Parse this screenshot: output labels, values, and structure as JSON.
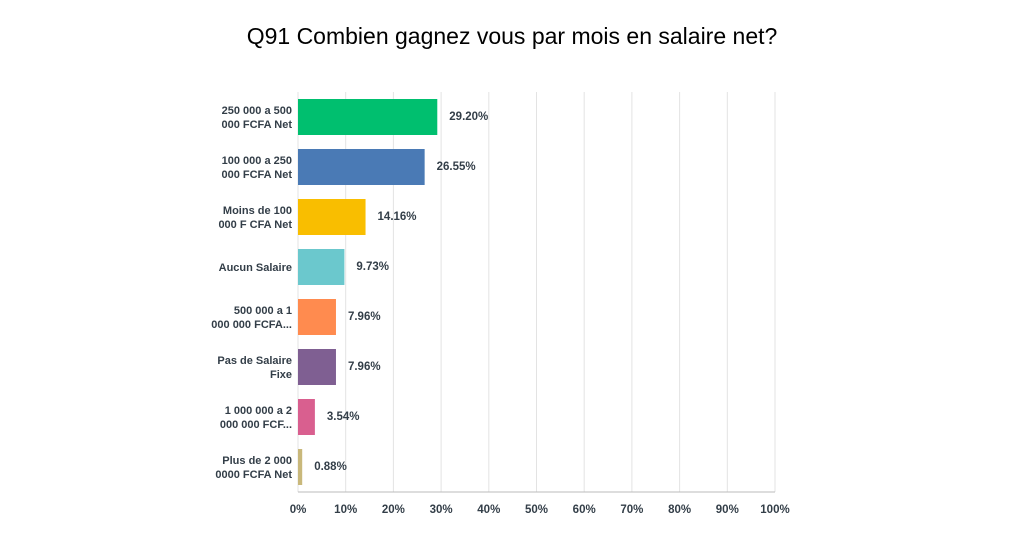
{
  "chart_data": {
    "type": "bar",
    "orientation": "horizontal",
    "title": "Q91 Combien gagnez vous par mois en salaire net?",
    "categories": [
      "250 000 a 500\n000 FCFA Net",
      "100 000 a 250\n000 FCFA Net",
      "Moins de 100\n000 F CFA Net",
      "Aucun Salaire",
      "500 000 a 1\n000 000 FCFA...",
      "Pas de Salaire\nFixe",
      "1 000 000 a 2\n000 000 FCF...",
      "Plus de 2 000\n0000 FCFA Net"
    ],
    "values": [
      29.2,
      26.55,
      14.16,
      9.73,
      7.96,
      7.96,
      3.54,
      0.88
    ],
    "value_labels": [
      "29.20%",
      "26.55%",
      "14.16%",
      "9.73%",
      "7.96%",
      "7.96%",
      "3.54%",
      "0.88%"
    ],
    "colors": [
      "#00bf6f",
      "#4a7ab5",
      "#f9be00",
      "#6bc8cd",
      "#ff8b4f",
      "#7f5f92",
      "#d95f8f",
      "#c9b87b"
    ],
    "xlim": [
      0,
      100
    ],
    "xticks": [
      {
        "value": 0,
        "label": "0%"
      },
      {
        "value": 10,
        "label": "10%"
      },
      {
        "value": 20,
        "label": "20%"
      },
      {
        "value": 30,
        "label": "30%"
      },
      {
        "value": 40,
        "label": "40%"
      },
      {
        "value": 50,
        "label": "50%"
      },
      {
        "value": 60,
        "label": "60%"
      },
      {
        "value": 70,
        "label": "70%"
      },
      {
        "value": 80,
        "label": "80%"
      },
      {
        "value": 90,
        "label": "90%"
      },
      {
        "value": 100,
        "label": "100%"
      }
    ],
    "grid": true
  }
}
